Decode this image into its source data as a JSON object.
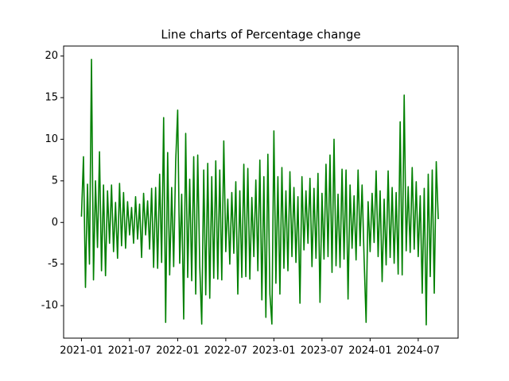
{
  "chart_data": {
    "type": "line",
    "title": "Line charts of Percentage change",
    "color": "#008000",
    "values": [
      0.7,
      7.9,
      -7.8,
      4.6,
      -5,
      19.6,
      -6.9,
      5,
      -3,
      8.5,
      -5.8,
      4.5,
      -6.4,
      3.8,
      -2.5,
      4.5,
      -3.5,
      2.4,
      -4.3,
      4.7,
      -2.8,
      3.6,
      -3.1,
      2.5,
      -1.5,
      1.8,
      -2.5,
      3.1,
      -2,
      2.2,
      -4.2,
      3.5,
      -1.5,
      2.6,
      -3.2,
      4.1,
      -5.4,
      4.2,
      -5.5,
      5.8,
      -4.8,
      12.6,
      -12,
      8.4,
      -6.3,
      4.2,
      -5.3,
      7.3,
      13.5,
      -4.9,
      3.4,
      -11.6,
      10.7,
      -6.6,
      5.2,
      -7,
      7.9,
      -8.6,
      8.1,
      -5.2,
      -12.2,
      6.3,
      -8.7,
      7.1,
      -9.1,
      5.5,
      -6.7,
      7.4,
      -6.8,
      6.3,
      -6.9,
      9.8,
      -3.5,
      2.8,
      -5,
      3.6,
      -3.7,
      4.9,
      -8.6,
      3.8,
      -6.6,
      7,
      -6.5,
      6.5,
      -6.8,
      3,
      -4.1,
      5.1,
      -5.8,
      7.5,
      -9.3,
      5.5,
      -11.4,
      8.2,
      -8.6,
      -12.2,
      11,
      -7.3,
      5.5,
      -8.6,
      6.6,
      -5.5,
      3.8,
      -5.8,
      6.1,
      -4.1,
      4.2,
      -4.8,
      3.1,
      -9.7,
      5.5,
      -3.3,
      3.8,
      -2.5,
      5.3,
      -5.3,
      4.1,
      -4.3,
      5.9,
      -9.6,
      3.5,
      -4.4,
      7,
      -4.1,
      8.1,
      -6,
      10,
      -5.2,
      3.4,
      -5.4,
      6.4,
      -4.4,
      6.3,
      -9.2,
      4.5,
      -3.1,
      3.2,
      -4.5,
      6.3,
      -2.8,
      4.5,
      -4.3,
      -12,
      2.5,
      -3.5,
      3.5,
      -2.4,
      6.2,
      -4.1,
      3.8,
      -7.1,
      2.8,
      -5.1,
      6.2,
      -4.2,
      4.2,
      -4.9,
      3.6,
      -6.2,
      12.1,
      -6.3,
      15.3,
      -3.4,
      4.3,
      -3.6,
      6.6,
      -3.2,
      4.9,
      -4.1,
      3.2,
      -8.5,
      4.1,
      -12.3,
      5.8,
      -6.5,
      6.3,
      -8.5,
      7.3,
      0.4
    ],
    "xlim": [
      -8.9,
      187.9
    ],
    "xticks": [
      {
        "value": 0,
        "label": "2021-01"
      },
      {
        "value": 24,
        "label": "2021-07"
      },
      {
        "value": 48,
        "label": "2022-01"
      },
      {
        "value": 72,
        "label": "2022-07"
      },
      {
        "value": 96,
        "label": "2023-01"
      },
      {
        "value": 120,
        "label": "2023-07"
      },
      {
        "value": 144,
        "label": "2024-01"
      },
      {
        "value": 168,
        "label": "2024-07"
      }
    ],
    "ylim": [
      -13.9,
      21.2
    ],
    "yticks": [
      -10,
      -5,
      0,
      5,
      10,
      15,
      20
    ],
    "grid": false
  }
}
